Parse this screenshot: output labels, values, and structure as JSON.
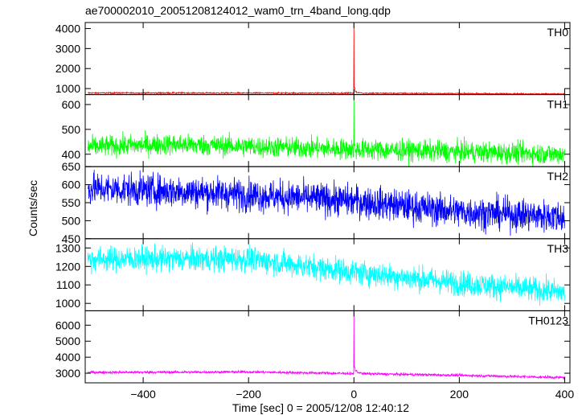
{
  "chart_data": {
    "type": "line",
    "title": "ae700002010_20051208124012_wam0_trn_4band_long.qdp",
    "xlabel": "Time [sec] 0 = 2005/12/08 12:40:12",
    "ylabel": "Counts/sec",
    "xlim": [
      -510,
      410
    ],
    "xticks": [
      -400,
      -200,
      0,
      200,
      400
    ],
    "grid": false,
    "panels": [
      {
        "name": "TH0",
        "color": "#ff0000",
        "ylim": [
          700,
          4300
        ],
        "yticks": [
          1000,
          2000,
          3000,
          4000
        ],
        "baseline": [
          [
            -505,
            780
          ],
          [
            0,
            770
          ],
          [
            400,
            730
          ]
        ],
        "noise": 25,
        "spike": {
          "x": 0,
          "peak": 4300,
          "decay": [
            {
              "x": 2,
              "y": 1050
            },
            {
              "x": 5,
              "y": 850
            },
            {
              "x": 15,
              "y": 790
            }
          ]
        }
      },
      {
        "name": "TH1",
        "color": "#00ff00",
        "ylim": [
          350,
          640
        ],
        "yticks": [
          400,
          500,
          600
        ],
        "baseline": [
          [
            -505,
            430
          ],
          [
            -350,
            440
          ],
          [
            0,
            420
          ],
          [
            400,
            400
          ]
        ],
        "noise": 30,
        "spike": {
          "x": 0,
          "peak": 640,
          "decay": [
            {
              "x": 2,
              "y": 430
            }
          ]
        }
      },
      {
        "name": "TH2",
        "color": "#0000ff",
        "ylim": [
          450,
          650
        ],
        "yticks": [
          450,
          500,
          550,
          600,
          650
        ],
        "baseline": [
          [
            -505,
            590
          ],
          [
            -300,
            580
          ],
          [
            0,
            555
          ],
          [
            200,
            525
          ],
          [
            400,
            510
          ]
        ],
        "noise": 32
      },
      {
        "name": "TH3",
        "color": "#00ffff",
        "ylim": [
          960,
          1350
        ],
        "yticks": [
          1000,
          1100,
          1200,
          1300
        ],
        "baseline": [
          [
            -505,
            1240
          ],
          [
            -200,
            1240
          ],
          [
            0,
            1170
          ],
          [
            200,
            1110
          ],
          [
            400,
            1060
          ]
        ],
        "noise": 48
      },
      {
        "name": "TH0123",
        "color": "#ff00ff",
        "ylim": [
          2400,
          6900
        ],
        "yticks": [
          3000,
          4000,
          5000,
          6000
        ],
        "baseline": [
          [
            -505,
            3050
          ],
          [
            -200,
            3080
          ],
          [
            0,
            2980
          ],
          [
            200,
            2870
          ],
          [
            400,
            2730
          ]
        ],
        "noise": 60,
        "spike": {
          "x": 0,
          "peak": 6900,
          "decay": [
            {
              "x": 2,
              "y": 3400
            },
            {
              "x": 6,
              "y": 3150
            },
            {
              "x": 15,
              "y": 3020
            }
          ]
        }
      }
    ]
  }
}
